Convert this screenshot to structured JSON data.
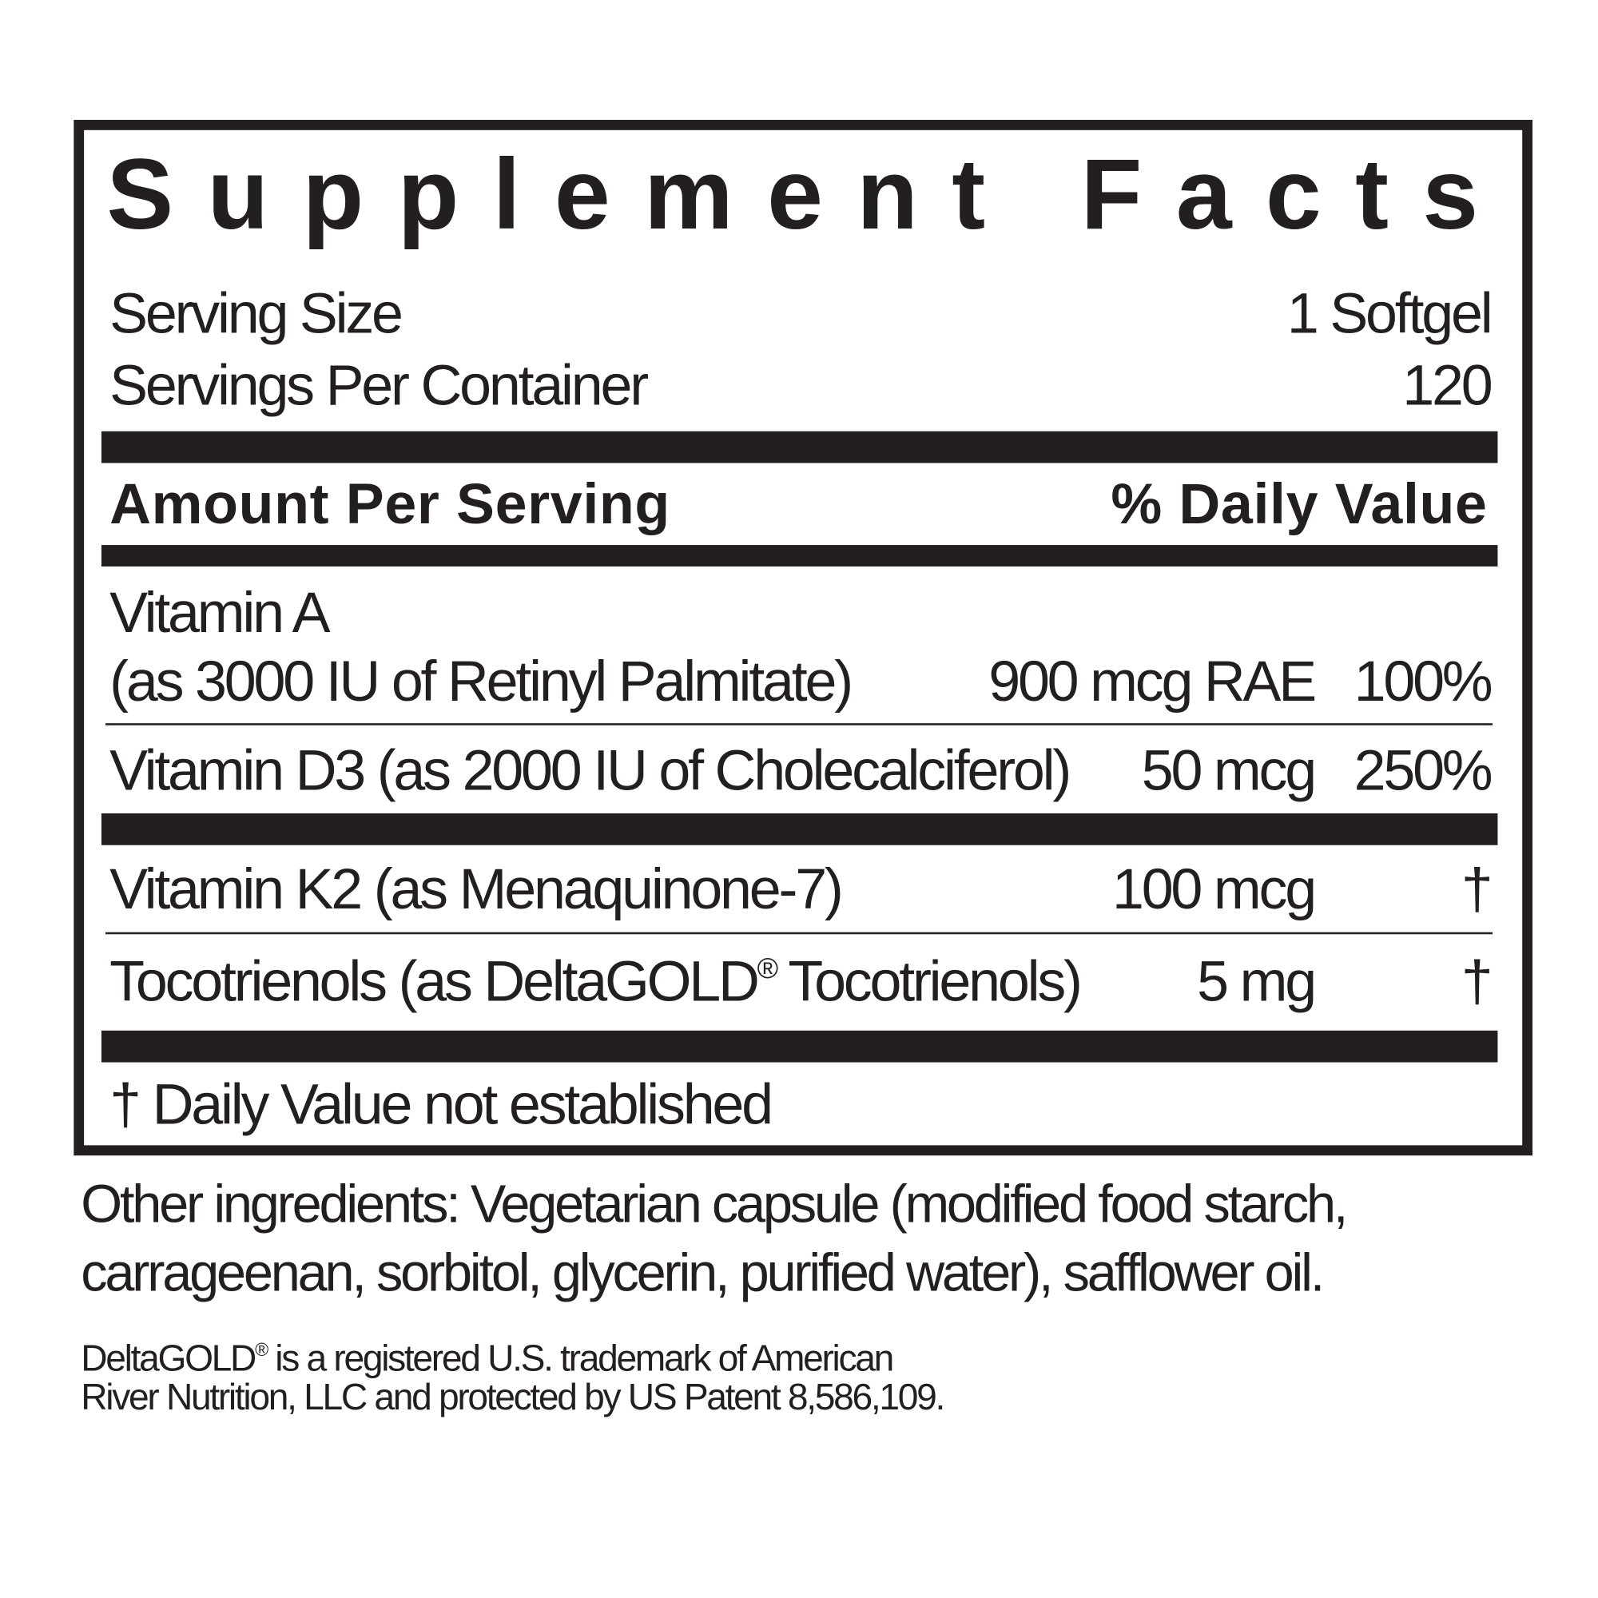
{
  "title": "Supplement Facts",
  "serving": {
    "size_label": "Serving Size",
    "size_value": "1 Softgel",
    "per_container_label": "Servings Per Container",
    "per_container_value": "120"
  },
  "header": {
    "amount": "Amount Per Serving",
    "dv": "% Daily Value"
  },
  "nutrients": [
    {
      "name": "Vitamin A",
      "source": "(as 3000 IU of Retinyl Palmitate)",
      "amount": "900 mcg RAE",
      "dv": "100%"
    },
    {
      "name": "Vitamin D3 (as 2000 IU of Cholecalciferol)",
      "amount": "50 mcg",
      "dv": "250%"
    },
    {
      "name": "Vitamin K2 (as Menaquinone-7)",
      "amount": "100 mcg",
      "dv": "†"
    },
    {
      "name_pre": "Tocotrienols (as DeltaGOLD",
      "name_reg": "®",
      "name_post": " Tocotrienols)",
      "amount": "5 mg",
      "dv": "†"
    }
  ],
  "footnote": "† Daily Value not established",
  "other_ingredients": {
    "line1": "Other ingredients: Vegetarian capsule (modified food starch,",
    "line2": "carrageenan, sorbitol, glycerin, purified water), safflower oil."
  },
  "trademark": {
    "line1_pre": "DeltaGOLD",
    "line1_reg": "®",
    "line1_post": " is a registered U.S. trademark of American",
    "line2": "River Nutrition, LLC and protected by US Patent 8,586,109."
  }
}
